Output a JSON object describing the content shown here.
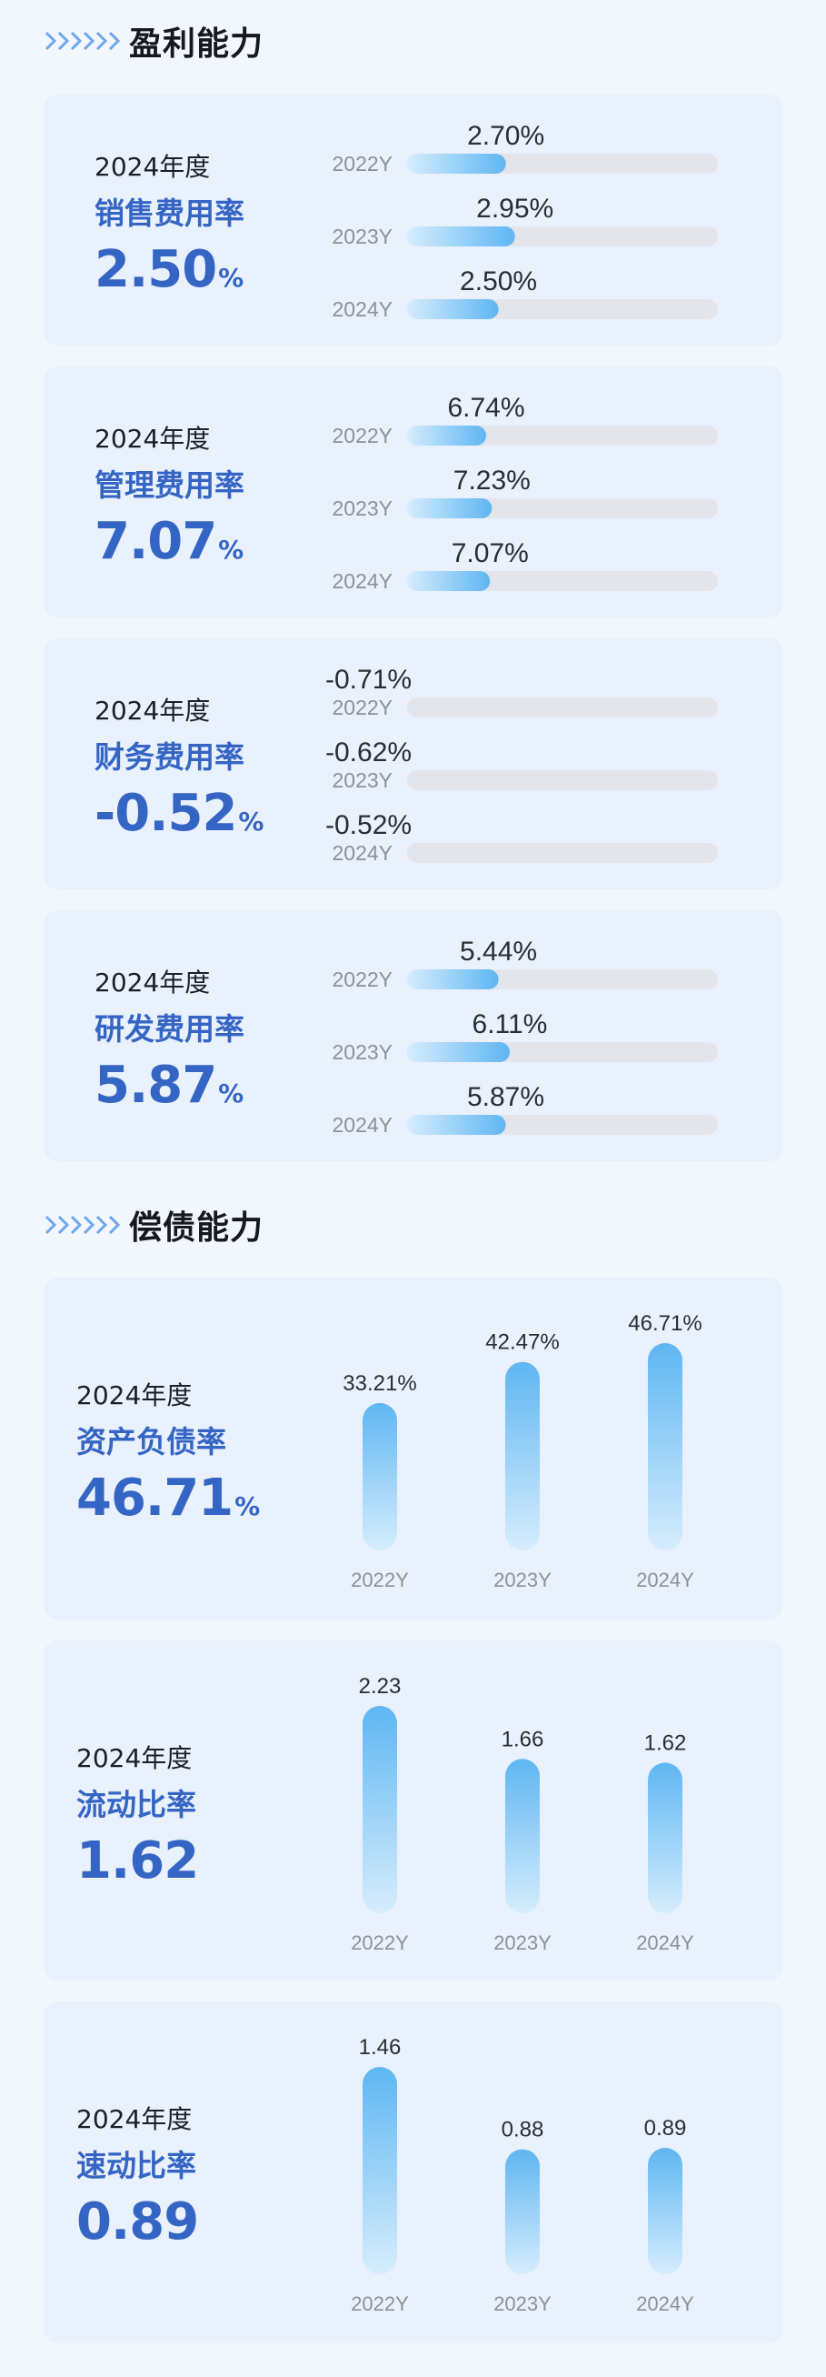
{
  "sections": [
    {
      "title": "盈利能力"
    },
    {
      "title": "偿债能力"
    }
  ],
  "colors": {
    "accent": "#3565c4",
    "bar_top": "#5eb6f2",
    "bar_bottom": "#d6edfd",
    "track": "#e3e5ea"
  },
  "chart_data": [
    {
      "type": "bar",
      "orientation": "horizontal",
      "categories": [
        "2022Y",
        "2023Y",
        "2024Y"
      ],
      "values": [
        2.7,
        2.95,
        2.5
      ],
      "value_labels": [
        "2.70%",
        "2.95%",
        "2.50%"
      ],
      "xlim": [
        0,
        8.5
      ],
      "title": "销售费用率",
      "year_label": "2024年度",
      "headline_value": "2.50",
      "headline_unit": "%"
    },
    {
      "type": "bar",
      "orientation": "horizontal",
      "categories": [
        "2022Y",
        "2023Y",
        "2024Y"
      ],
      "values": [
        6.74,
        7.23,
        7.07
      ],
      "value_labels": [
        "6.74%",
        "7.23%",
        "7.07%"
      ],
      "xlim": [
        0,
        26.5
      ],
      "title": "管理费用率",
      "year_label": "2024年度",
      "headline_value": "7.07",
      "headline_unit": "%"
    },
    {
      "type": "bar",
      "orientation": "horizontal",
      "categories": [
        "2022Y",
        "2023Y",
        "2024Y"
      ],
      "values": [
        -0.71,
        -0.62,
        -0.52
      ],
      "value_labels": [
        "-0.71%",
        "-0.62%",
        "-0.52%"
      ],
      "xlim": [
        0,
        1
      ],
      "title": "财务费用率",
      "year_label": "2024年度",
      "headline_value": "-0.52",
      "headline_unit": "%"
    },
    {
      "type": "bar",
      "orientation": "horizontal",
      "categories": [
        "2022Y",
        "2023Y",
        "2024Y"
      ],
      "values": [
        5.44,
        6.11,
        5.87
      ],
      "value_labels": [
        "5.44%",
        "6.11%",
        "5.87%"
      ],
      "xlim": [
        0,
        18.5
      ],
      "title": "研发费用率",
      "year_label": "2024年度",
      "headline_value": "5.87",
      "headline_unit": "%"
    },
    {
      "type": "bar",
      "orientation": "vertical",
      "categories": [
        "2022Y",
        "2023Y",
        "2024Y"
      ],
      "values": [
        33.21,
        42.47,
        46.71
      ],
      "value_labels": [
        "33.21%",
        "42.47%",
        "46.71%"
      ],
      "ylim": [
        0,
        46.71
      ],
      "title": "资产负债率",
      "year_label": "2024年度",
      "headline_value": "46.71",
      "headline_unit": "%"
    },
    {
      "type": "bar",
      "orientation": "vertical",
      "categories": [
        "2022Y",
        "2023Y",
        "2024Y"
      ],
      "values": [
        2.23,
        1.66,
        1.62
      ],
      "value_labels": [
        "2.23",
        "1.66",
        "1.62"
      ],
      "ylim": [
        0,
        2.23
      ],
      "title": "流动比率",
      "year_label": "2024年度",
      "headline_value": "1.62",
      "headline_unit": ""
    },
    {
      "type": "bar",
      "orientation": "vertical",
      "categories": [
        "2022Y",
        "2023Y",
        "2024Y"
      ],
      "values": [
        1.46,
        0.88,
        0.89
      ],
      "value_labels": [
        "1.46",
        "0.88",
        "0.89"
      ],
      "ylim": [
        0,
        1.46
      ],
      "title": "速动比率",
      "year_label": "2024年度",
      "headline_value": "0.89",
      "headline_unit": ""
    }
  ]
}
